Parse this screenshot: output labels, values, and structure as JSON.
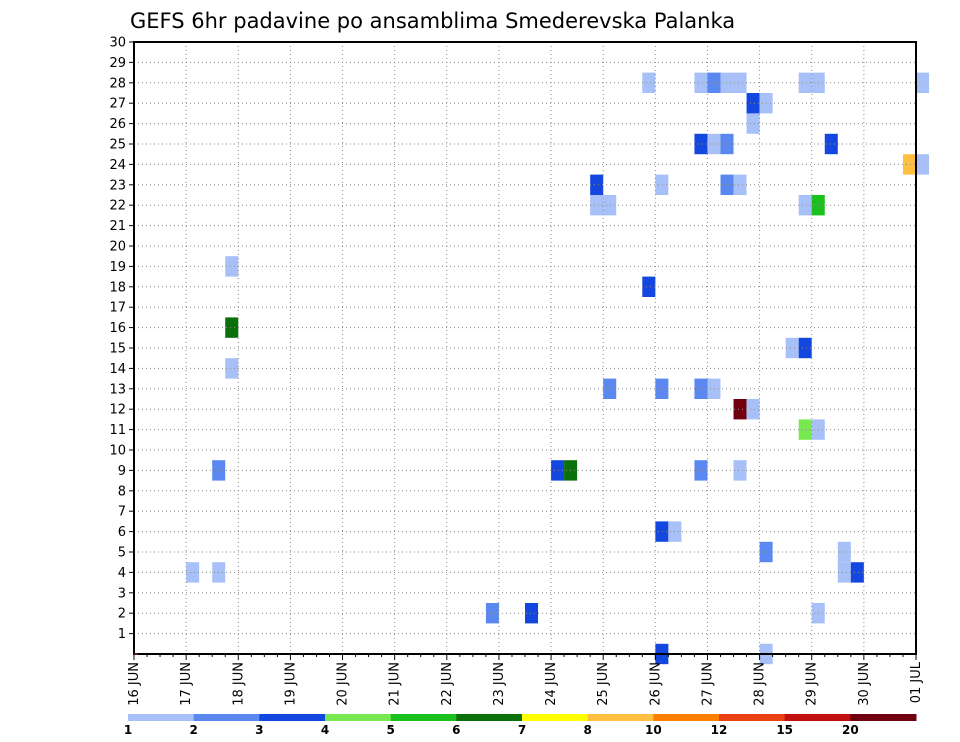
{
  "chart_data": {
    "type": "heatmap",
    "title": "GEFS 6hr padavine po ansamblima Smederevska Palanka",
    "xlabel": "",
    "ylabel": "",
    "y_ticks": [
      "1",
      "2",
      "3",
      "4",
      "5",
      "6",
      "7",
      "8",
      "9",
      "10",
      "11",
      "12",
      "13",
      "14",
      "15",
      "16",
      "17",
      "18",
      "19",
      "20",
      "21",
      "22",
      "23",
      "24",
      "25",
      "26",
      "27",
      "28",
      "29",
      "30"
    ],
    "ylim": [
      0,
      30
    ],
    "x_tick_labels": [
      "16 JUN",
      "17 JUN",
      "18 JUN",
      "19 JUN",
      "20 JUN",
      "21 JUN",
      "22 JUN",
      "23 JUN",
      "24 JUN",
      "25 JUN",
      "26 JUN",
      "27 JUN",
      "28 JUN",
      "29 JUN",
      "30 JUN",
      "01 JUL"
    ],
    "xlim_days": [
      0,
      15
    ],
    "x_unit": "days from 16 JUN 00Z",
    "step_hours": 6,
    "grid": true,
    "colorbar": {
      "labels": [
        "1",
        "2",
        "3",
        "4",
        "5",
        "6",
        "7",
        "8",
        "10",
        "12",
        "15",
        "20"
      ],
      "colors": [
        "#a8c0f8",
        "#5a88f0",
        "#1446e0",
        "#78e850",
        "#1cc01c",
        "#0a700a",
        "#ffff00",
        "#ffbf40",
        "#ff8000",
        "#e84010",
        "#c01010",
        "#700010"
      ]
    },
    "cells": [
      {
        "t": 1.0,
        "m": 4,
        "c": 1
      },
      {
        "t": 1.5,
        "m": 4,
        "c": 1
      },
      {
        "t": 1.5,
        "m": 9,
        "c": 2
      },
      {
        "t": 1.75,
        "m": 14,
        "c": 1
      },
      {
        "t": 1.75,
        "m": 16,
        "c": 6
      },
      {
        "t": 1.75,
        "m": 19,
        "c": 1
      },
      {
        "t": 6.75,
        "m": 2,
        "c": 2
      },
      {
        "t": 7.5,
        "m": 2,
        "c": 3
      },
      {
        "t": 8.0,
        "m": 9,
        "c": 3
      },
      {
        "t": 8.25,
        "m": 9,
        "c": 6
      },
      {
        "t": 8.75,
        "m": 22,
        "c": 1
      },
      {
        "t": 8.75,
        "m": 23,
        "c": 3
      },
      {
        "t": 9.0,
        "m": 22,
        "c": 1
      },
      {
        "t": 9.0,
        "m": 13,
        "c": 2
      },
      {
        "t": 9.75,
        "m": 18,
        "c": 3
      },
      {
        "t": 9.75,
        "m": 28,
        "c": 1
      },
      {
        "t": 10.0,
        "m": 0,
        "c": 3
      },
      {
        "t": 10.0,
        "m": 6,
        "c": 3
      },
      {
        "t": 10.25,
        "m": 6,
        "c": 1
      },
      {
        "t": 10.0,
        "m": 13,
        "c": 2
      },
      {
        "t": 10.0,
        "m": 23,
        "c": 1
      },
      {
        "t": 10.75,
        "m": 9,
        "c": 2
      },
      {
        "t": 10.75,
        "m": 13,
        "c": 2
      },
      {
        "t": 11.0,
        "m": 13,
        "c": 1
      },
      {
        "t": 10.75,
        "m": 25,
        "c": 3
      },
      {
        "t": 11.0,
        "m": 25,
        "c": 1
      },
      {
        "t": 11.25,
        "m": 25,
        "c": 2
      },
      {
        "t": 10.75,
        "m": 28,
        "c": 1
      },
      {
        "t": 11.0,
        "m": 28,
        "c": 2
      },
      {
        "t": 11.25,
        "m": 28,
        "c": 1
      },
      {
        "t": 11.5,
        "m": 28,
        "c": 1
      },
      {
        "t": 11.25,
        "m": 23,
        "c": 2
      },
      {
        "t": 11.5,
        "m": 23,
        "c": 1
      },
      {
        "t": 11.5,
        "m": 9,
        "c": 1
      },
      {
        "t": 11.5,
        "m": 12,
        "c": 12
      },
      {
        "t": 11.75,
        "m": 12,
        "c": 1
      },
      {
        "t": 11.75,
        "m": 26,
        "c": 1
      },
      {
        "t": 11.75,
        "m": 27,
        "c": 3
      },
      {
        "t": 12.0,
        "m": 27,
        "c": 1
      },
      {
        "t": 12.0,
        "m": 0,
        "c": 1
      },
      {
        "t": 12.0,
        "m": 5,
        "c": 2
      },
      {
        "t": 12.5,
        "m": 15,
        "c": 1
      },
      {
        "t": 12.75,
        "m": 15,
        "c": 3
      },
      {
        "t": 12.75,
        "m": 11,
        "c": 4
      },
      {
        "t": 13.0,
        "m": 11,
        "c": 1
      },
      {
        "t": 12.75,
        "m": 22,
        "c": 1
      },
      {
        "t": 13.0,
        "m": 22,
        "c": 5
      },
      {
        "t": 12.75,
        "m": 28,
        "c": 1
      },
      {
        "t": 13.0,
        "m": 28,
        "c": 1
      },
      {
        "t": 13.0,
        "m": 2,
        "c": 1
      },
      {
        "t": 13.25,
        "m": 25,
        "c": 3
      },
      {
        "t": 13.5,
        "m": 4,
        "c": 1
      },
      {
        "t": 13.5,
        "m": 5,
        "c": 1
      },
      {
        "t": 13.75,
        "m": 4,
        "c": 3
      },
      {
        "t": 14.75,
        "m": 24,
        "c": 8
      },
      {
        "t": 15.0,
        "m": 24,
        "c": 1
      },
      {
        "t": 15.0,
        "m": 28,
        "c": 1
      }
    ]
  }
}
